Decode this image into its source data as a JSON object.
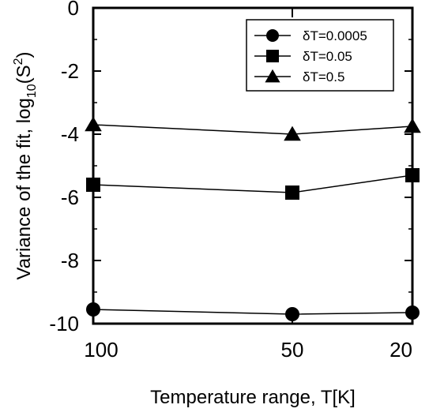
{
  "chart_data": {
    "type": "line",
    "xlabel": "Temperature range, T[K]",
    "ylabel_main": "Variance of the fit, log",
    "ylabel_sub": "10",
    "ylabel_tail": "(S",
    "ylabel_sup": "2",
    "ylabel_close": ")",
    "x_categories": [
      "100",
      "50",
      "20"
    ],
    "ylim": [
      -10,
      0
    ],
    "y_ticks": [
      "0",
      "-2",
      "-4",
      "-6",
      "-8",
      "-10"
    ],
    "y_tick_values": [
      0,
      -2,
      -4,
      -6,
      -8,
      -10
    ],
    "grid": false,
    "legend_position": "top-right",
    "series": [
      {
        "name": "δT=0.0005",
        "marker": "circle",
        "values": [
          -9.55,
          -9.7,
          -9.65
        ]
      },
      {
        "name": "δT=0.05",
        "marker": "square",
        "values": [
          -5.6,
          -5.85,
          -5.3
        ]
      },
      {
        "name": "δT=0.5",
        "marker": "triangle",
        "values": [
          -3.7,
          -4.0,
          -3.75
        ]
      }
    ],
    "colors": {
      "line": "#000000",
      "marker": "#000000",
      "background": "#ffffff"
    }
  }
}
